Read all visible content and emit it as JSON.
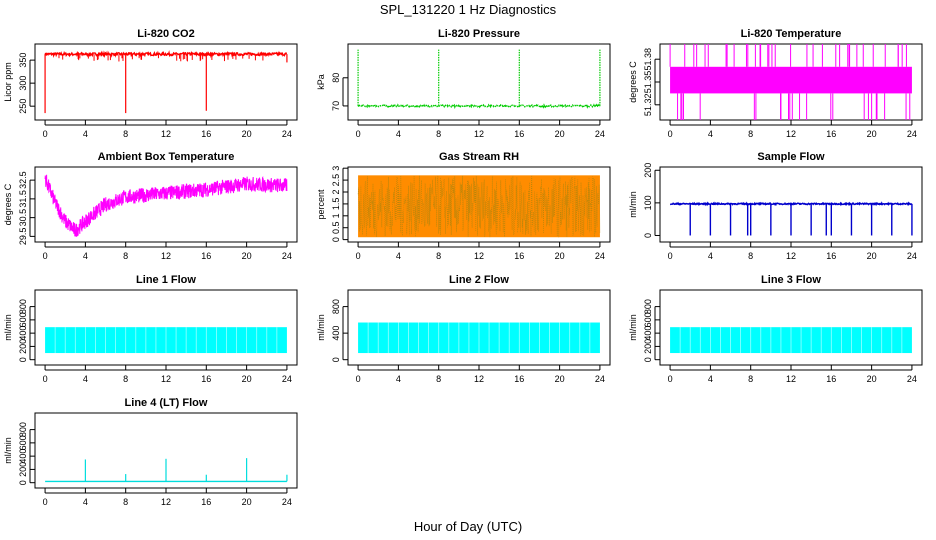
{
  "title": "SPL_131220  1 Hz Diagnostics",
  "xlabel": "Hour of Day (UTC)",
  "chart_data": [
    {
      "type": "line",
      "title": "Li-820 CO2",
      "ylabel": "Licor ppm",
      "color": "#ff0000",
      "ylim": [
        220,
        385
      ],
      "yticks": [
        250,
        300,
        350
      ],
      "xlim": [
        -1,
        25
      ],
      "xticks": [
        0,
        4,
        8,
        12,
        16,
        20,
        24
      ],
      "mean": 363,
      "noise": 3,
      "spikes": [
        [
          8,
          235
        ],
        [
          16,
          240
        ],
        [
          0,
          235
        ],
        [
          24,
          345
        ]
      ],
      "style": "line"
    },
    {
      "type": "line",
      "title": "Li-820 Pressure",
      "ylabel": "kPa",
      "color": "#00cc00",
      "ylim": [
        65,
        92
      ],
      "yticks": [
        70,
        80
      ],
      "xlim": [
        -1,
        25
      ],
      "xticks": [
        0,
        4,
        8,
        12,
        16,
        20,
        24
      ],
      "mean": 70,
      "noise": 0.3,
      "spikes": [
        [
          0,
          90
        ],
        [
          8,
          90
        ],
        [
          16,
          90
        ],
        [
          24,
          90
        ]
      ],
      "style": "dotted"
    },
    {
      "type": "band",
      "title": "Li-820 Temperature",
      "ylabel": "degrees C",
      "color": "#ff00ff",
      "ylim": [
        51.3,
        51.4
      ],
      "yticks": [
        51.32,
        51.35,
        51.38
      ],
      "xlim": [
        -1,
        25
      ],
      "xticks": [
        0,
        4,
        8,
        12,
        16,
        20,
        24
      ],
      "band": [
        51.335,
        51.37
      ],
      "style": "band"
    },
    {
      "type": "line",
      "title": "Ambient Box Temperature",
      "ylabel": "degrees C",
      "color": "#ff00ff",
      "ylim": [
        29.2,
        33.2
      ],
      "yticks": [
        29.5,
        30.5,
        31.5,
        32.5
      ],
      "xlim": [
        -1,
        25
      ],
      "xticks": [
        0,
        4,
        8,
        12,
        16,
        20,
        24
      ],
      "curve": [
        [
          0,
          32.6
        ],
        [
          1,
          31.3
        ],
        [
          2,
          30.3
        ],
        [
          3,
          29.8
        ],
        [
          4,
          30.3
        ],
        [
          6,
          31.2
        ],
        [
          8,
          31.6
        ],
        [
          12,
          31.8
        ],
        [
          16,
          32.0
        ],
        [
          20,
          32.3
        ],
        [
          24,
          32.2
        ]
      ],
      "noise": 0.4,
      "style": "noisy"
    },
    {
      "type": "line",
      "title": "Gas Stream RH",
      "ylabel": "percent",
      "color": "#cc8800",
      "ylim": [
        -0.1,
        3.05
      ],
      "yticks": [
        0.0,
        0.5,
        1.0,
        1.5,
        2.0,
        2.5,
        3.0
      ],
      "xlim": [
        -1,
        25
      ],
      "xticks": [
        0,
        4,
        8,
        12,
        16,
        20,
        24
      ],
      "band": [
        0.1,
        2.7
      ],
      "style": "rh"
    },
    {
      "type": "line",
      "title": "Sample Flow",
      "ylabel": "ml/min",
      "color": "#0000cc",
      "ylim": [
        -20,
        210
      ],
      "yticks": [
        0,
        100,
        200
      ],
      "xlim": [
        -1,
        25
      ],
      "xticks": [
        0,
        4,
        8,
        12,
        16,
        20,
        24
      ],
      "mean": 97,
      "noise": 2,
      "drops": [
        2,
        4,
        6,
        7.7,
        8,
        10,
        12,
        14,
        15.5,
        16,
        18,
        20,
        22,
        24
      ],
      "low": 0,
      "style": "drops"
    },
    {
      "type": "band",
      "title": "Line 1 Flow",
      "ylabel": "ml/min",
      "color": "#00ffff",
      "ylim": [
        -80,
        1050
      ],
      "yticks": [
        0,
        200,
        400,
        600,
        800
      ],
      "xlim": [
        -1,
        25
      ],
      "xticks": [
        0,
        4,
        8,
        12,
        16,
        20,
        24
      ],
      "band": [
        100,
        490
      ],
      "style": "flowband"
    },
    {
      "type": "band",
      "title": "Line 2 Flow",
      "ylabel": "ml/min",
      "color": "#00ffff",
      "ylim": [
        -80,
        1050
      ],
      "yticks": [
        0,
        400,
        800
      ],
      "xlim": [
        -1,
        25
      ],
      "xticks": [
        0,
        4,
        8,
        12,
        16,
        20,
        24
      ],
      "band": [
        100,
        560
      ],
      "style": "flowband"
    },
    {
      "type": "band",
      "title": "Line 3 Flow",
      "ylabel": "ml/min",
      "color": "#00ffff",
      "ylim": [
        -80,
        1050
      ],
      "yticks": [
        0,
        200,
        400,
        600,
        800
      ],
      "xlim": [
        -1,
        25
      ],
      "xticks": [
        0,
        4,
        8,
        12,
        16,
        20,
        24
      ],
      "band": [
        100,
        490
      ],
      "style": "flowband"
    },
    {
      "type": "line",
      "title": "Line 4 (LT) Flow",
      "ylabel": "ml/min",
      "color": "#00dddd",
      "ylim": [
        -80,
        1050
      ],
      "yticks": [
        0,
        200,
        400,
        600,
        800
      ],
      "xlim": [
        -1,
        25
      ],
      "xticks": [
        0,
        4,
        8,
        12,
        16,
        20,
        24
      ],
      "mean": 20,
      "spikes": [
        [
          4,
          350
        ],
        [
          8,
          130
        ],
        [
          12,
          360
        ],
        [
          16,
          120
        ],
        [
          20,
          370
        ],
        [
          24,
          120
        ]
      ],
      "style": "line"
    }
  ]
}
